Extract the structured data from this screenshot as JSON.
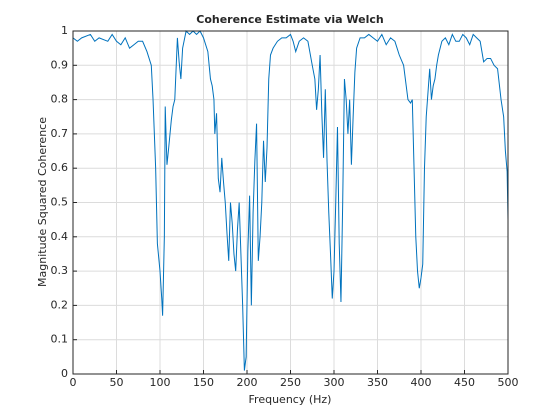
{
  "chart_data": {
    "type": "line",
    "title": "Coherence Estimate via Welch",
    "x_label": "Frequency (Hz)",
    "y_label": "Magnitude Squared Coherence",
    "xlim": [
      0,
      500
    ],
    "ylim": [
      0,
      1
    ],
    "xticks": [
      0,
      50,
      100,
      150,
      200,
      250,
      300,
      350,
      400,
      450,
      500
    ],
    "yticks": [
      0,
      0.1,
      0.2,
      0.3,
      0.4,
      0.5,
      0.6,
      0.7,
      0.8,
      0.9,
      1
    ],
    "grid": true,
    "series": [
      {
        "name": "coherence",
        "color": "#0072bd",
        "x": [
          0,
          5,
          10,
          20,
          25,
          30,
          40,
          45,
          50,
          55,
          60,
          65,
          70,
          75,
          80,
          85,
          90,
          92,
          95,
          97,
          100,
          102,
          103,
          105,
          106,
          108,
          110,
          113,
          115,
          117,
          120,
          122,
          124,
          126,
          130,
          134,
          138,
          142,
          146,
          150,
          155,
          158,
          160,
          162,
          163,
          165,
          167,
          169,
          171,
          173,
          175,
          177,
          179,
          181,
          183,
          185,
          187,
          189,
          191,
          193,
          195,
          197,
          199,
          201,
          203,
          205,
          207,
          209,
          211,
          213,
          215,
          217,
          219,
          221,
          223,
          225,
          227,
          230,
          235,
          240,
          245,
          250,
          253,
          256,
          260,
          265,
          270,
          275,
          278,
          280,
          282,
          284,
          286,
          288,
          290,
          292,
          294,
          296,
          298,
          300,
          302,
          304,
          306,
          308,
          310,
          312,
          314,
          316,
          318,
          320,
          322,
          324,
          326,
          330,
          335,
          340,
          345,
          350,
          355,
          360,
          365,
          370,
          375,
          380,
          385,
          388,
          390,
          392,
          394,
          396,
          398,
          400,
          402,
          404,
          406,
          408,
          410,
          412,
          414,
          416,
          418,
          420,
          424,
          428,
          432,
          436,
          440,
          444,
          448,
          452,
          456,
          460,
          464,
          468,
          472,
          476,
          480,
          484,
          488,
          492,
          495,
          497,
          499,
          500
        ],
        "values": [
          0.98,
          0.97,
          0.98,
          0.99,
          0.97,
          0.98,
          0.97,
          0.99,
          0.97,
          0.96,
          0.98,
          0.95,
          0.96,
          0.97,
          0.97,
          0.94,
          0.9,
          0.8,
          0.6,
          0.38,
          0.3,
          0.22,
          0.17,
          0.4,
          0.78,
          0.61,
          0.66,
          0.74,
          0.78,
          0.8,
          0.98,
          0.91,
          0.86,
          0.95,
          1.0,
          0.99,
          1.0,
          0.99,
          1.0,
          0.98,
          0.94,
          0.86,
          0.84,
          0.8,
          0.7,
          0.76,
          0.57,
          0.53,
          0.63,
          0.56,
          0.5,
          0.41,
          0.33,
          0.5,
          0.44,
          0.35,
          0.3,
          0.42,
          0.5,
          0.35,
          0.2,
          0.01,
          0.05,
          0.36,
          0.52,
          0.2,
          0.47,
          0.62,
          0.73,
          0.33,
          0.4,
          0.5,
          0.68,
          0.56,
          0.66,
          0.86,
          0.93,
          0.95,
          0.97,
          0.98,
          0.98,
          0.99,
          0.97,
          0.94,
          0.97,
          0.98,
          0.97,
          0.9,
          0.86,
          0.77,
          0.83,
          0.93,
          0.76,
          0.63,
          0.83,
          0.62,
          0.47,
          0.35,
          0.22,
          0.3,
          0.5,
          0.72,
          0.38,
          0.21,
          0.5,
          0.86,
          0.8,
          0.7,
          0.8,
          0.61,
          0.75,
          0.88,
          0.95,
          0.98,
          0.98,
          0.99,
          0.98,
          0.97,
          0.99,
          0.96,
          0.98,
          0.97,
          0.93,
          0.9,
          0.8,
          0.79,
          0.8,
          0.6,
          0.4,
          0.3,
          0.25,
          0.28,
          0.32,
          0.6,
          0.75,
          0.82,
          0.89,
          0.8,
          0.84,
          0.86,
          0.9,
          0.93,
          0.97,
          0.98,
          0.96,
          0.99,
          0.97,
          0.97,
          0.99,
          0.98,
          0.96,
          0.99,
          0.98,
          0.97,
          0.91,
          0.92,
          0.92,
          0.9,
          0.89,
          0.8,
          0.75,
          0.65,
          0.59,
          0.45
        ]
      }
    ]
  }
}
